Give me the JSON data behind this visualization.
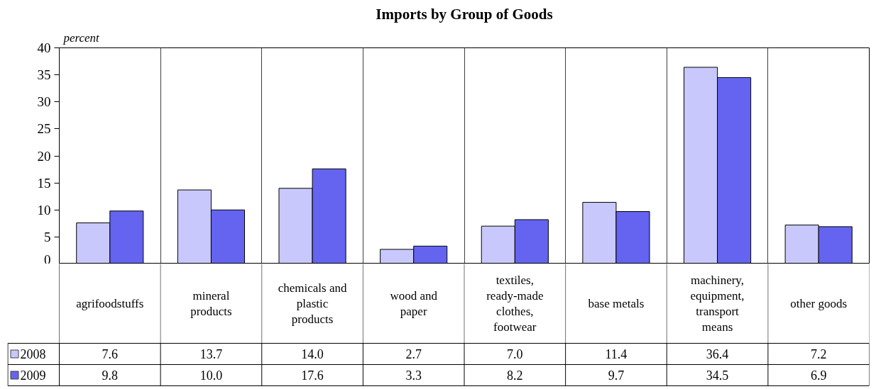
{
  "chart_data": {
    "type": "bar",
    "title": "Imports by Group of Goods",
    "ylabel": "percent",
    "categories": [
      "agrifoodstuffs",
      "mineral products",
      "chemicals and plastic products",
      "wood and paper",
      "textiles, ready-made clothes, footwear",
      "base metals",
      "machinery, equipment, transport means",
      "other goods"
    ],
    "series": [
      {
        "name": "2008",
        "color": "#c8c8fc",
        "values": [
          7.6,
          13.7,
          14.0,
          2.7,
          7.0,
          11.4,
          36.4,
          7.2
        ],
        "value_labels": [
          "7.6",
          "13.7",
          "14.0",
          "2.7",
          "7.0",
          "11.4",
          "36.4",
          "7.2"
        ]
      },
      {
        "name": "2009",
        "color": "#6464f0",
        "values": [
          9.8,
          10.0,
          17.6,
          3.3,
          8.2,
          9.7,
          34.5,
          6.9
        ],
        "value_labels": [
          "9.8",
          "10.0",
          "17.6",
          "3.3",
          "8.2",
          "9.7",
          "34.5",
          "6.9"
        ]
      }
    ],
    "ylim": [
      0,
      40
    ],
    "yticks": [
      0,
      5,
      10,
      15,
      20,
      25,
      30,
      35,
      40
    ],
    "grid": "x",
    "legend": "bottom left"
  }
}
